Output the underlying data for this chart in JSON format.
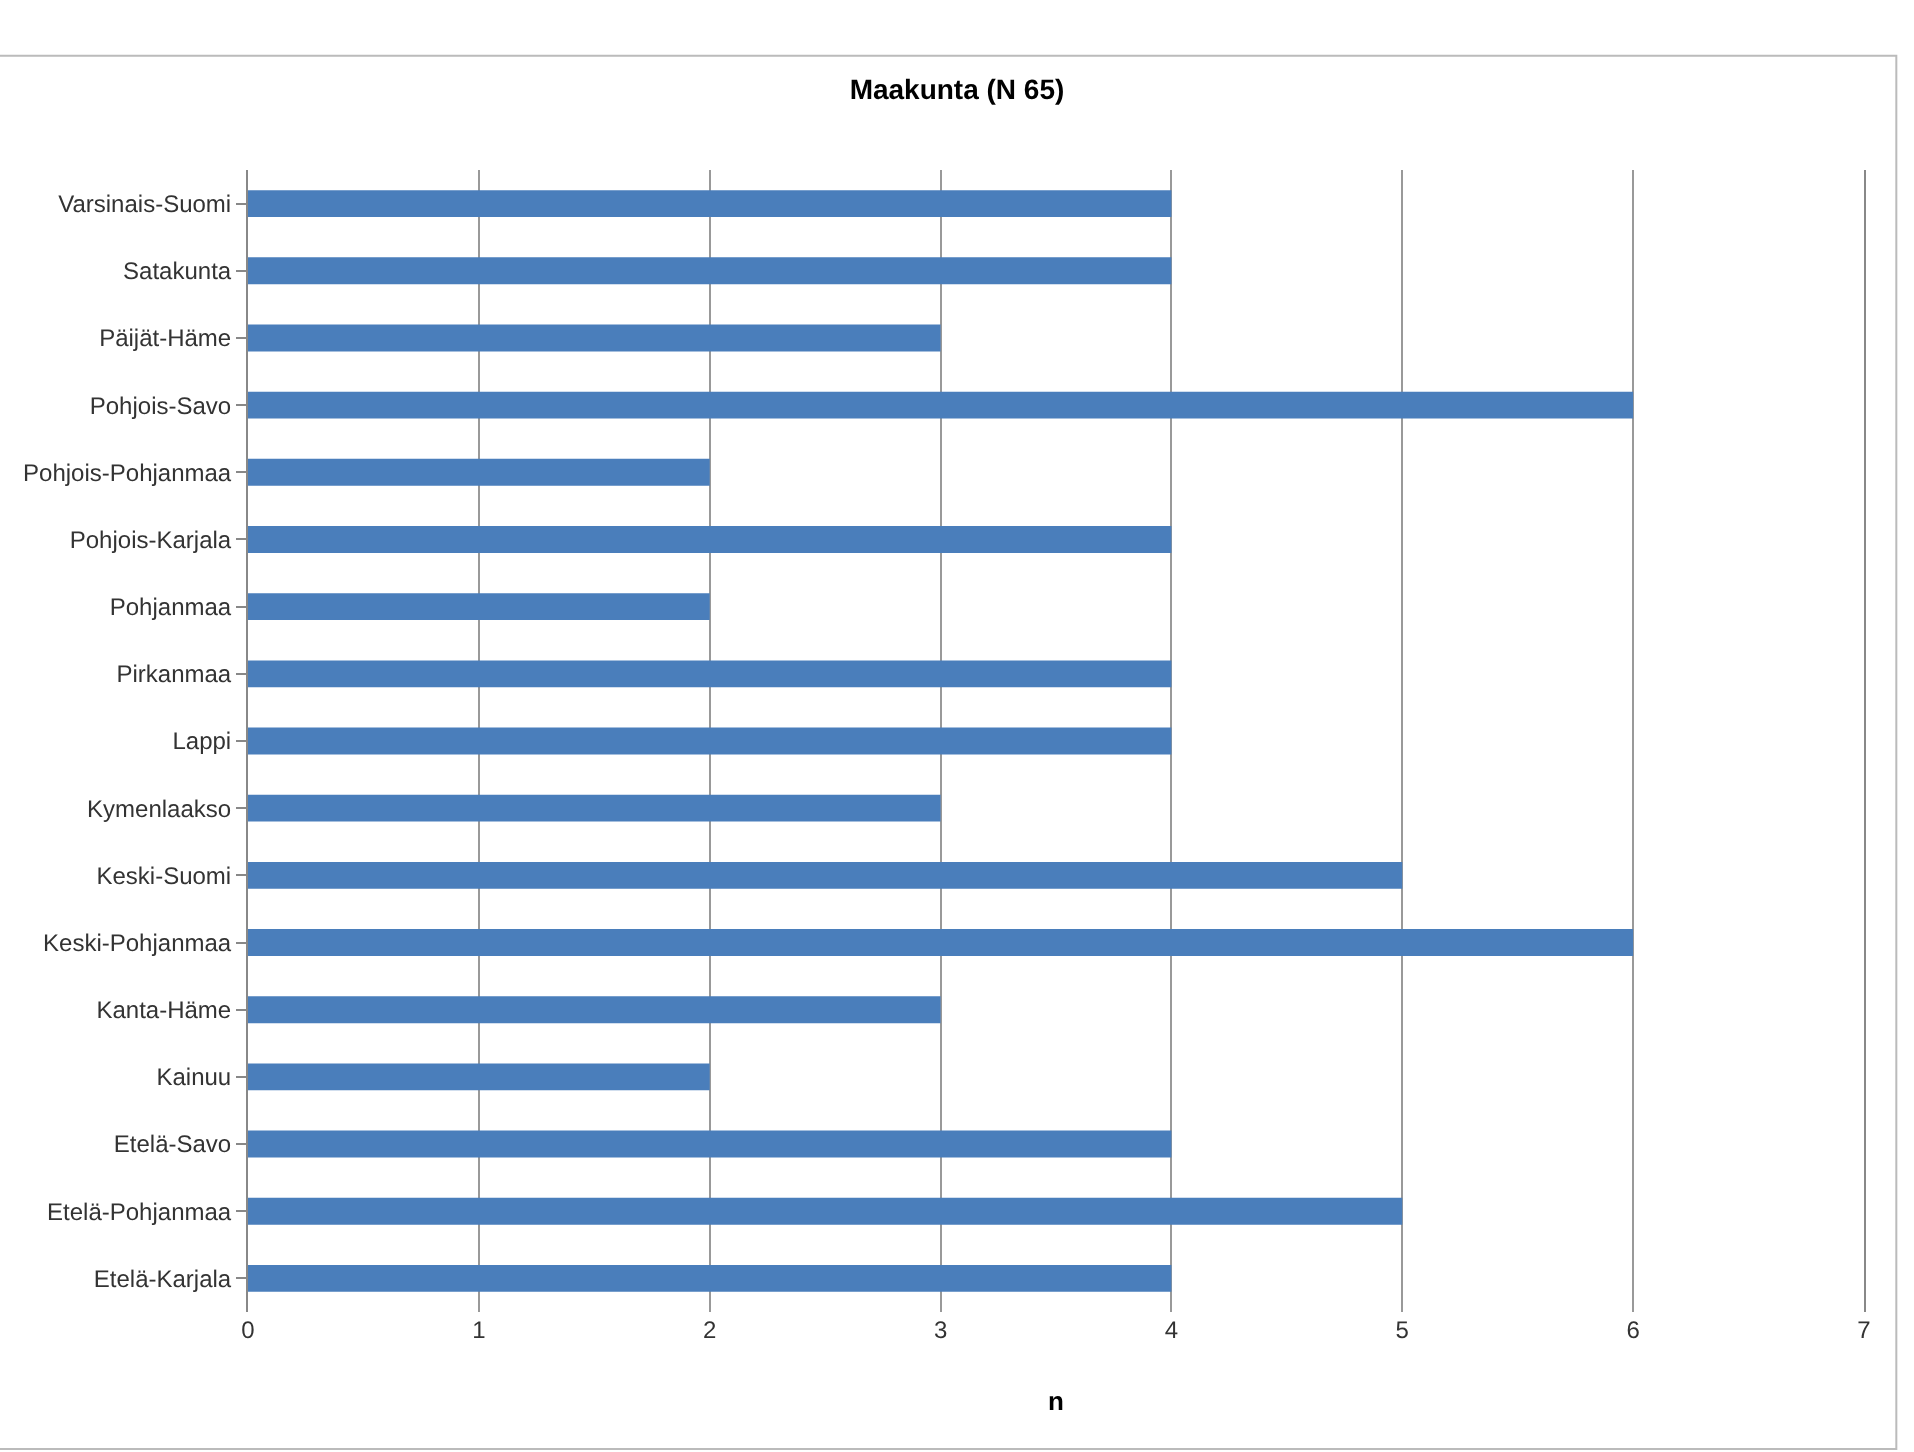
{
  "chart_data": {
    "type": "bar",
    "title": "Maakunta (N 65)",
    "xlabel": "n",
    "orientation": "horizontal",
    "categories": [
      "Varsinais-Suomi",
      "Satakunta",
      "Päijät-Häme",
      "Pohjois-Savo",
      "Pohjois-Pohjanmaa",
      "Pohjois-Karjala",
      "Pohjanmaa",
      "Pirkanmaa",
      "Lappi",
      "Kymenlaakso",
      "Keski-Suomi",
      "Keski-Pohjanmaa",
      "Kanta-Häme",
      "Kainuu",
      "Etelä-Savo",
      "Etelä-Pohjanmaa",
      "Etelä-Karjala"
    ],
    "values": [
      4,
      4,
      3,
      6,
      2,
      4,
      2,
      4,
      4,
      3,
      5,
      6,
      3,
      2,
      4,
      5,
      4
    ],
    "color": "#4a7ebb",
    "xlim": [
      0,
      7
    ],
    "xticks": [
      0,
      1,
      2,
      3,
      4,
      5,
      6,
      7
    ],
    "grid": "x"
  }
}
